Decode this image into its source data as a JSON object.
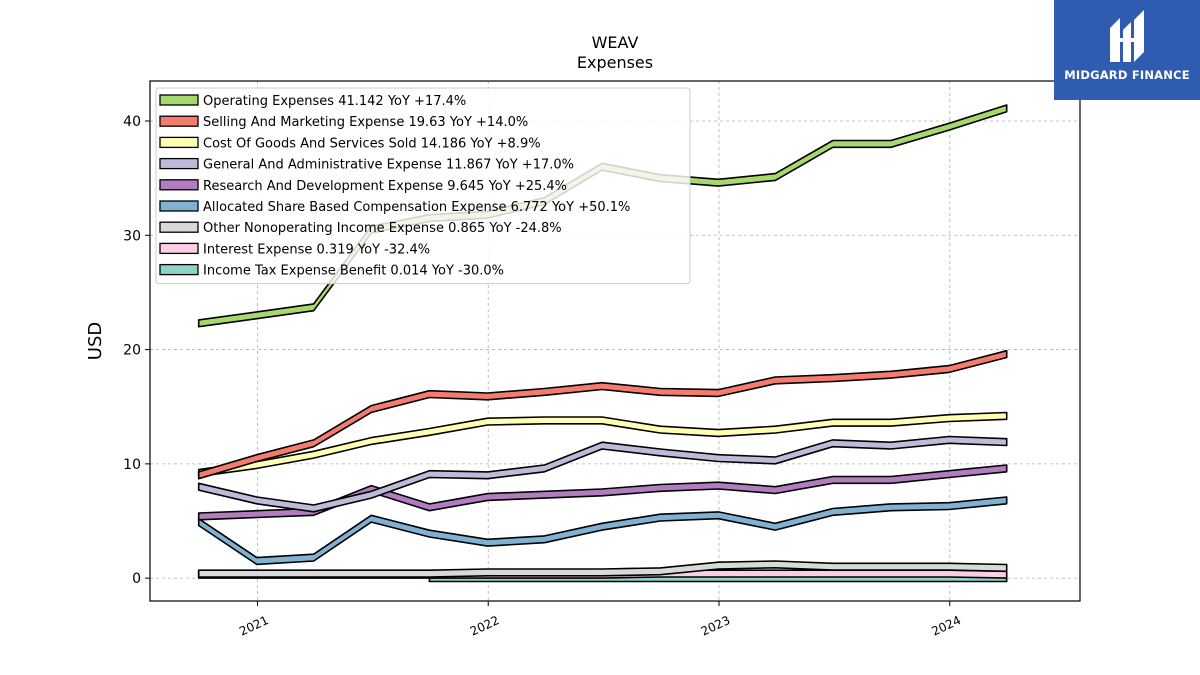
{
  "brand": {
    "name": "MIDGARD FINANCE",
    "bg_color": "#2f5cb0"
  },
  "chart_data": {
    "type": "area",
    "title": "WEAV",
    "subtitle": "Expenses",
    "ylabel": "USD",
    "xlabel": "",
    "ylim": [
      -2,
      43.5
    ],
    "yticks": [
      0,
      10,
      20,
      30,
      40
    ],
    "xlim": [
      "2020-07-15",
      "2024-07-25"
    ],
    "xticks": [
      "2021",
      "2022",
      "2023",
      "2024"
    ],
    "grid": true,
    "legend_position": "top-left",
    "x": [
      "2020-09-30",
      "2020-12-31",
      "2021-03-31",
      "2021-06-30",
      "2021-09-30",
      "2021-12-31",
      "2022-03-31",
      "2022-06-30",
      "2022-09-30",
      "2022-12-31",
      "2023-03-31",
      "2023-06-30",
      "2023-09-30",
      "2023-12-31",
      "2024-03-31"
    ],
    "series": [
      {
        "name": "Operating Expenses",
        "legend": "Operating Expenses  41.142 YoY +17.4%",
        "color": "#a6d86e",
        "values": [
          22.3,
          23.0,
          23.7,
          30.5,
          31.5,
          31.8,
          33.0,
          36.0,
          35.0,
          34.6,
          35.1,
          38.0,
          38.0,
          39.5,
          41.1
        ]
      },
      {
        "name": "Selling And Marketing Expense",
        "legend": "Selling And Marketing Expense  19.63 YoY +14.0%",
        "color": "#f47b6e",
        "values": [
          9.0,
          10.5,
          11.8,
          14.8,
          16.1,
          15.9,
          16.3,
          16.8,
          16.3,
          16.2,
          17.3,
          17.5,
          17.8,
          18.3,
          19.6
        ]
      },
      {
        "name": "Cost Of Goods And Services Sold",
        "legend": "Cost Of Goods And Services Sold  14.186 YoY +8.9%",
        "color": "#ffffb3",
        "values": [
          9.2,
          9.9,
          10.8,
          12.0,
          12.8,
          13.7,
          13.8,
          13.8,
          13.0,
          12.7,
          13.0,
          13.6,
          13.6,
          14.0,
          14.2
        ]
      },
      {
        "name": "General And Administrative Expense",
        "legend": "General And Administrative Expense  11.867 YoY +17.0%",
        "color": "#bebada",
        "values": [
          8.0,
          6.8,
          6.1,
          7.3,
          9.1,
          9.0,
          9.6,
          11.6,
          11.0,
          10.5,
          10.3,
          11.8,
          11.6,
          12.1,
          11.9
        ]
      },
      {
        "name": "Research And Development Expense",
        "legend": "Research And Development Expense  9.645 YoY +25.4%",
        "color": "#b27dbe",
        "values": [
          5.4,
          5.6,
          5.8,
          7.8,
          6.2,
          7.1,
          7.3,
          7.5,
          7.9,
          8.1,
          7.7,
          8.6,
          8.6,
          9.1,
          9.6
        ]
      },
      {
        "name": "Allocated Share Based Compensation Expense",
        "legend": "Allocated Share Based Compensation Expense  6.772 YoY +50.1%",
        "color": "#80b1d3",
        "values": [
          4.9,
          1.5,
          1.8,
          5.2,
          3.9,
          3.1,
          3.4,
          4.5,
          5.3,
          5.5,
          4.5,
          5.8,
          6.2,
          6.3,
          6.8
        ]
      },
      {
        "name": "Other Nonoperating Income Expense",
        "legend": "Other Nonoperating Income Expense  0.865 YoY -24.8%",
        "color": "#d9d9d9",
        "values": [
          0.4,
          0.4,
          0.4,
          0.4,
          0.4,
          0.5,
          0.5,
          0.5,
          0.6,
          1.1,
          1.2,
          1.0,
          1.0,
          1.0,
          0.9
        ]
      },
      {
        "name": "Interest Expense",
        "legend": "Interest Expense  0.319 YoY -32.4%",
        "color": "#fccde5",
        "values": [
          0.3,
          0.3,
          0.3,
          0.3,
          0.3,
          0.3,
          0.3,
          0.3,
          0.4,
          0.4,
          0.4,
          0.4,
          0.4,
          0.4,
          0.3
        ]
      },
      {
        "name": "Income Tax Expense Benefit",
        "legend": "Income Tax Expense Benefit  0.014 YoY -30.0%",
        "color": "#8dd3c7",
        "values": [
          null,
          null,
          null,
          null,
          0.0,
          0.0,
          0.0,
          0.0,
          0.0,
          0.0,
          0.0,
          0.0,
          0.0,
          0.0,
          0.0
        ]
      }
    ]
  }
}
